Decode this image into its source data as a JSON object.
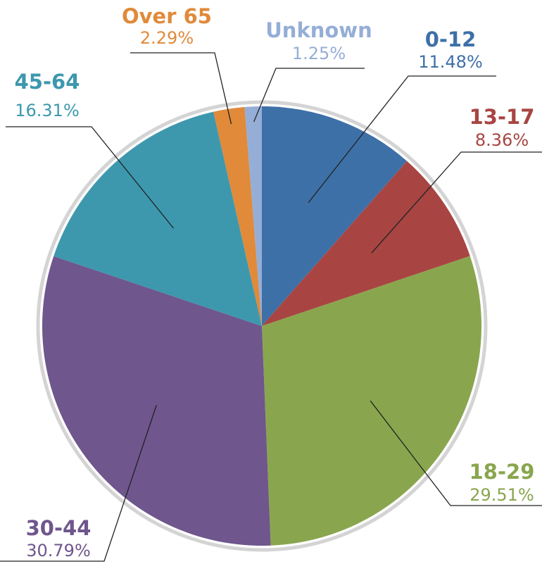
{
  "chart_data": {
    "type": "pie",
    "categories": [
      "0-12",
      "13-17",
      "18-29",
      "30-44",
      "45-64",
      "Over 65",
      "Unknown"
    ],
    "values": [
      11.48,
      8.36,
      29.51,
      30.79,
      16.31,
      2.29,
      1.25
    ],
    "value_labels": [
      "11.48%",
      "8.36%",
      "29.51%",
      "30.79%",
      "16.31%",
      "2.29%",
      "1.25%"
    ],
    "colors": [
      "#3e70a8",
      "#a84542",
      "#89a64e",
      "#6f568d",
      "#3d98ae",
      "#e08a3a",
      "#95aed7"
    ]
  }
}
